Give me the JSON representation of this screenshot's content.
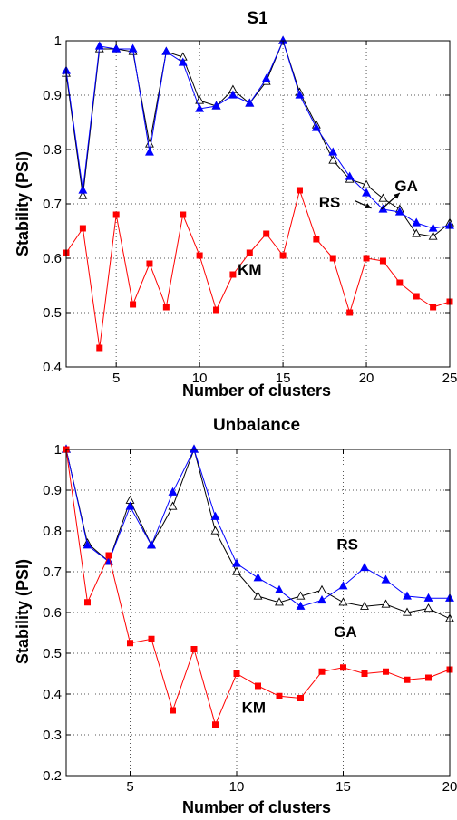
{
  "chart_data": [
    {
      "type": "line",
      "title": "S1",
      "xlabel": "Number of clusters",
      "ylabel": "Stability (PSI)",
      "xlim": [
        2,
        25
      ],
      "ylim": [
        0.4,
        1.0
      ],
      "xticks": [
        5,
        10,
        15,
        20,
        25
      ],
      "yticks": [
        0.4,
        0.5,
        0.6,
        0.7,
        0.8,
        0.9,
        1
      ],
      "ytick_labels": [
        "0.4",
        "0.5",
        "0.6",
        "0.7",
        "0.8",
        "0.9",
        "1"
      ],
      "grid": true,
      "x": [
        2,
        3,
        4,
        5,
        6,
        7,
        8,
        9,
        10,
        11,
        12,
        13,
        14,
        15,
        16,
        17,
        18,
        19,
        20,
        21,
        22,
        23,
        24,
        25
      ],
      "series": [
        {
          "name": "GA",
          "color": "#000000",
          "marker": "open-triangle",
          "values": [
            0.94,
            0.715,
            0.985,
            0.985,
            0.98,
            0.81,
            0.98,
            0.97,
            0.89,
            0.88,
            0.91,
            0.885,
            0.925,
            1.0,
            0.905,
            0.845,
            0.78,
            0.745,
            0.735,
            0.71,
            0.69,
            0.645,
            0.64,
            0.665
          ]
        },
        {
          "name": "RS",
          "color": "#0000ff",
          "marker": "filled-triangle",
          "values": [
            0.945,
            0.725,
            0.99,
            0.985,
            0.985,
            0.795,
            0.98,
            0.96,
            0.875,
            0.88,
            0.9,
            0.885,
            0.93,
            1.0,
            0.9,
            0.84,
            0.795,
            0.75,
            0.72,
            0.69,
            0.685,
            0.665,
            0.655,
            0.66
          ]
        },
        {
          "name": "KM",
          "color": "#ff0000",
          "marker": "filled-square",
          "values": [
            0.61,
            0.655,
            0.435,
            0.68,
            0.515,
            0.59,
            0.51,
            0.68,
            0.605,
            0.505,
            0.57,
            0.61,
            0.645,
            0.605,
            0.725,
            0.635,
            0.6,
            0.5,
            0.6,
            0.595,
            0.555,
            0.53,
            0.51,
            0.52
          ]
        }
      ],
      "annotations": [
        {
          "text": "GA",
          "x": 22.4,
          "y": 0.723
        },
        {
          "text": "RS",
          "x": 17.8,
          "y": 0.693
        },
        {
          "text": "KM",
          "x": 13.0,
          "y": 0.57
        }
      ],
      "arrows": [
        {
          "from": [
            20.9,
            0.69
          ],
          "to": [
            22.0,
            0.72
          ]
        },
        {
          "from": [
            19.3,
            0.706
          ],
          "to": [
            20.3,
            0.692
          ]
        }
      ]
    },
    {
      "type": "line",
      "title": "Unbalance",
      "xlabel": "Number of clusters",
      "ylabel": "Stability (PSI)",
      "xlim": [
        2,
        20
      ],
      "ylim": [
        0.2,
        1.0
      ],
      "xticks": [
        5,
        10,
        15,
        20
      ],
      "yticks": [
        0.2,
        0.3,
        0.4,
        0.5,
        0.6,
        0.7,
        0.8,
        0.9,
        1
      ],
      "ytick_labels": [
        "0.2",
        "0.3",
        "0.4",
        "0.5",
        "0.6",
        "0.7",
        "0.8",
        "0.9",
        "1"
      ],
      "grid": true,
      "x": [
        2,
        3,
        4,
        5,
        6,
        7,
        8,
        9,
        10,
        11,
        12,
        13,
        14,
        15,
        16,
        17,
        18,
        19,
        20
      ],
      "series": [
        {
          "name": "GA",
          "color": "#000000",
          "marker": "open-triangle",
          "values": [
            1.0,
            0.77,
            0.725,
            0.875,
            0.765,
            0.86,
            1.0,
            0.8,
            0.7,
            0.64,
            0.625,
            0.64,
            0.655,
            0.625,
            0.615,
            0.62,
            0.6,
            0.61,
            0.585
          ]
        },
        {
          "name": "RS",
          "color": "#0000ff",
          "marker": "filled-triangle",
          "values": [
            1.0,
            0.765,
            0.725,
            0.86,
            0.765,
            0.895,
            1.0,
            0.835,
            0.72,
            0.685,
            0.655,
            0.615,
            0.63,
            0.665,
            0.71,
            0.68,
            0.64,
            0.635,
            0.635
          ]
        },
        {
          "name": "KM",
          "color": "#ff0000",
          "marker": "filled-square",
          "values": [
            1.0,
            0.625,
            0.74,
            0.525,
            0.535,
            0.36,
            0.51,
            0.325,
            0.45,
            0.42,
            0.395,
            0.39,
            0.455,
            0.465,
            0.45,
            0.455,
            0.435,
            0.44,
            0.46
          ]
        }
      ],
      "annotations": [
        {
          "text": "RS",
          "x": 15.2,
          "y": 0.755
        },
        {
          "text": "GA",
          "x": 15.1,
          "y": 0.54
        },
        {
          "text": "KM",
          "x": 10.8,
          "y": 0.355
        }
      ],
      "arrows": []
    }
  ]
}
